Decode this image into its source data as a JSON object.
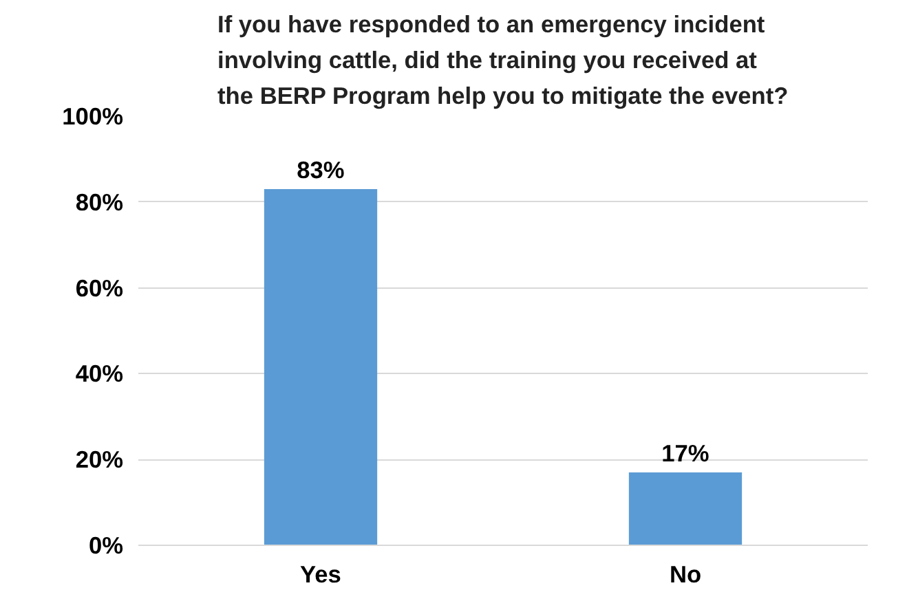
{
  "chart_data": {
    "type": "bar",
    "title": "If you have responded to an emergency incident involving cattle, did the training you received at the BERP Program help you to mitigate the event?",
    "categories": [
      "Yes",
      "No"
    ],
    "values": [
      83,
      17
    ],
    "value_labels": [
      "83%",
      "17%"
    ],
    "color": "#5b9bd5",
    "ylim": [
      0,
      100
    ],
    "yticks": [
      {
        "value": 0,
        "label": "0%"
      },
      {
        "value": 20,
        "label": "20%"
      },
      {
        "value": 40,
        "label": "40%"
      },
      {
        "value": 60,
        "label": "60%"
      },
      {
        "value": 80,
        "label": "80%"
      },
      {
        "value": 100,
        "label": "100%"
      }
    ],
    "grid": "y"
  }
}
